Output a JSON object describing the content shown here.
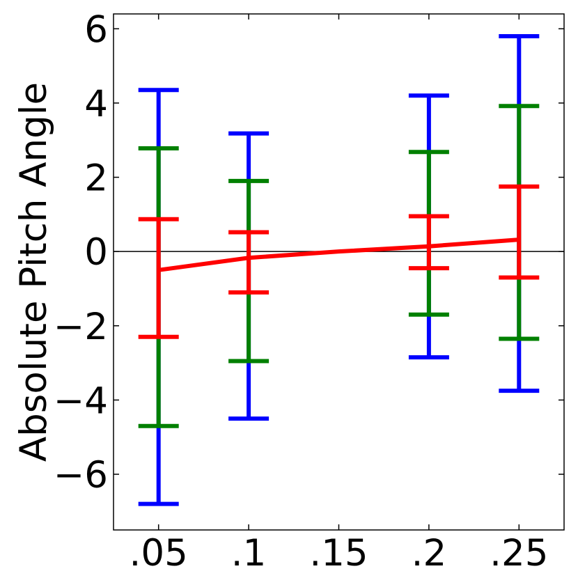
{
  "chart_data": {
    "type": "errorbar",
    "title": "",
    "xlabel": "",
    "ylabel": "Absolute Pitch Angle",
    "xlim": [
      0.025,
      0.275
    ],
    "ylim": [
      -7.5,
      6.4
    ],
    "x": [
      0.05,
      0.1,
      0.15,
      0.2,
      0.25
    ],
    "x_tick_labels": [
      ".05",
      ".1",
      ".15",
      ".2",
      ".25"
    ],
    "y_ticks": [
      -6,
      -4,
      -2,
      0,
      2,
      4,
      6
    ],
    "y_tick_labels": [
      "−6",
      "−4",
      "−2",
      "0",
      "2",
      "4",
      "6"
    ],
    "grid": false,
    "legend": "none",
    "zero_line": true,
    "mean_line": {
      "color": "#ff0000",
      "values": [
        -0.5,
        -0.17,
        0.0,
        0.14,
        0.32
      ]
    },
    "series": [
      {
        "color": "#0000ff",
        "low": [
          -6.8,
          -4.5,
          null,
          -2.85,
          -3.75
        ],
        "high": [
          4.35,
          3.18,
          null,
          4.2,
          5.8
        ]
      },
      {
        "color": "#008000",
        "low": [
          -4.7,
          -2.95,
          null,
          -1.7,
          -2.35
        ],
        "high": [
          2.78,
          1.9,
          null,
          2.68,
          3.92
        ]
      },
      {
        "color": "#ff0000",
        "low": [
          -2.3,
          -1.1,
          null,
          -0.45,
          -0.7
        ],
        "high": [
          0.87,
          0.52,
          null,
          0.95,
          1.75
        ]
      }
    ]
  }
}
